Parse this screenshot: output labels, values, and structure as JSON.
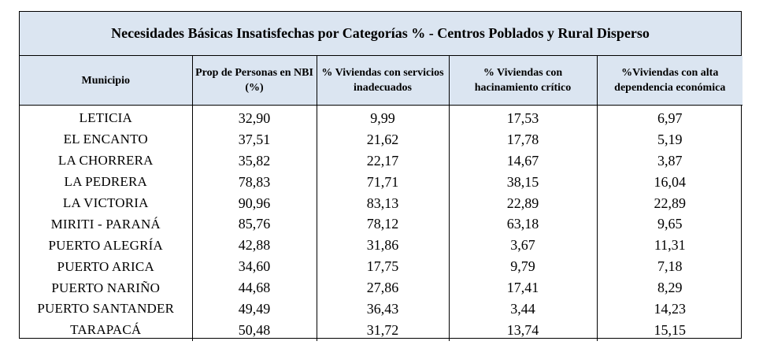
{
  "title": "Necesidades Básicas Insatisfechas por Categorías % - Centros Poblados y Rural Disperso",
  "headers": [
    "Municipio",
    "Prop de Personas en NBI (%)",
    "% Viviendas con servicios inadecuados",
    "% Viviendas con hacinamiento crítico",
    "%Viviendas con alta dependencia económica"
  ],
  "rows": [
    [
      "LETICIA",
      "32,90",
      "9,99",
      "17,53",
      "6,97"
    ],
    [
      "EL ENCANTO",
      "37,51",
      "21,62",
      "17,78",
      "5,19"
    ],
    [
      "LA CHORRERA",
      "35,82",
      "22,17",
      "14,67",
      "3,87"
    ],
    [
      "LA PEDRERA",
      "78,83",
      "71,71",
      "38,15",
      "16,04"
    ],
    [
      "LA VICTORIA",
      "90,96",
      "83,13",
      "22,89",
      "22,89"
    ],
    [
      "MIRITI - PARANÁ",
      "85,76",
      "78,12",
      "63,18",
      "9,65"
    ],
    [
      "PUERTO ALEGRÍA",
      "42,88",
      "31,86",
      "3,67",
      "11,31"
    ],
    [
      "PUERTO ARICA",
      "34,60",
      "17,75",
      "9,79",
      "7,18"
    ],
    [
      "PUERTO NARIÑO",
      "44,68",
      "27,86",
      "17,41",
      "8,29"
    ],
    [
      "PUERTO SANTANDER",
      "49,49",
      "36,43",
      "3,44",
      "14,23"
    ],
    [
      "TARAPACÁ",
      "50,48",
      "31,72",
      "13,74",
      "15,15"
    ]
  ],
  "colors": {
    "header_bg": "#dbe5f1",
    "border": "#000000"
  }
}
